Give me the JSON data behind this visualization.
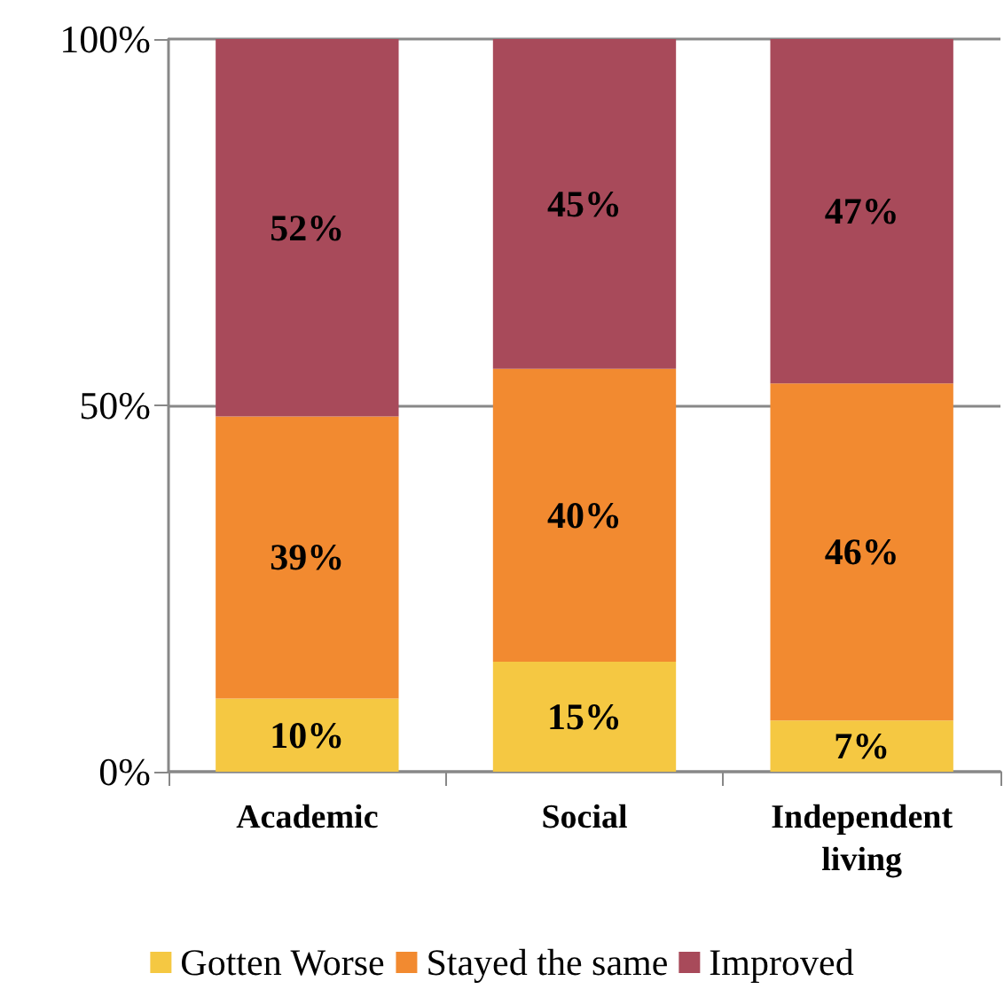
{
  "chart_data": {
    "type": "bar",
    "stacked": true,
    "categories": [
      "Academic",
      "Social",
      "Independent\nliving"
    ],
    "series": [
      {
        "name": "Gotten Worse",
        "color": "#f5c842",
        "values": [
          10,
          15,
          7
        ],
        "value_labels": [
          "10%",
          "15%",
          "7%"
        ]
      },
      {
        "name": "Stayed the same",
        "color": "#f28a30",
        "values": [
          38.5,
          40,
          46
        ],
        "value_labels": [
          "39%",
          "40%",
          "46%"
        ]
      },
      {
        "name": "Improved",
        "color": "#a84a5a",
        "values": [
          51.5,
          45,
          47
        ],
        "value_labels": [
          "52%",
          "45%",
          "47%"
        ]
      }
    ],
    "ylim": [
      0,
      100
    ],
    "yticks": [
      {
        "value": 0,
        "label": "0%"
      },
      {
        "value": 50,
        "label": "50%"
      },
      {
        "value": 100,
        "label": "100%"
      }
    ],
    "grid": "y",
    "legend": "bottom"
  }
}
